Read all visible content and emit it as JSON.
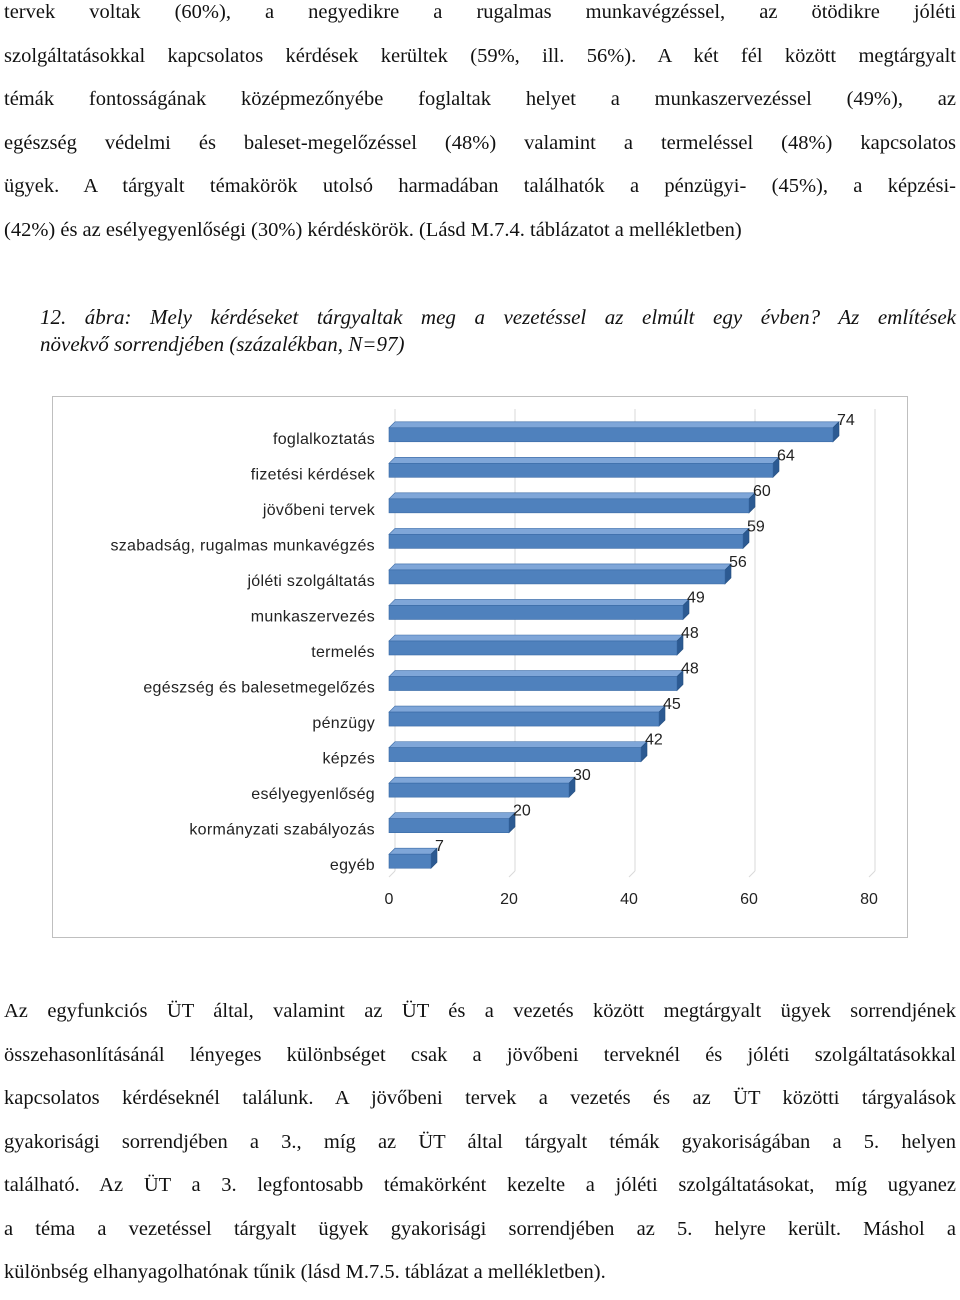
{
  "paragraph1": [
    "tervek voltak (60%), a negyedikre a rugalmas munkavégzéssel, az ötödikre jóléti",
    "szolgáltatásokkal kapcsolatos kérdések kerültek (59%, ill. 56%). A két fél között megtárgyalt",
    "témák fontosságának középmezőnyébe foglaltak helyet a munkaszervezéssel (49%), az",
    "egészség védelmi és baleset-megelőzéssel (48%) valamint a termeléssel (48%) kapcsolatos",
    "ügyek. A tárgyalt témakörök utolsó harmadában találhatók a pénzügyi- (45%), a képzési-",
    "(42%) és az esélyegyenlőségi (30%) kérdéskörök. (Lásd M.7.4. táblázatot a mellékletben)"
  ],
  "caption": [
    "12. ábra: Mely kérdéseket tárgyaltak meg a vezetéssel az elmúlt egy évben? Az említések",
    "növekvő sorrendjében (százalékban, N=97)"
  ],
  "chart_data": {
    "type": "bar",
    "orientation": "horizontal",
    "style": "3d",
    "title": "",
    "categories": [
      "foglalkoztatás",
      "fizetési kérdések",
      "jövőbeni tervek",
      "szabadság, rugalmas munkavégzés",
      "jóléti szolgáltatás",
      "munkaszervezés",
      "termelés",
      "egészség és balesetmegelőzés",
      "pénzügy",
      "képzés",
      "esélyegyenlőség",
      "kormányzati szabályozás",
      "egyéb"
    ],
    "values": [
      74,
      64,
      60,
      59,
      56,
      49,
      48,
      48,
      45,
      42,
      30,
      20,
      7
    ],
    "xlim": [
      0,
      80
    ],
    "xticks": [
      "0",
      "20",
      "40",
      "60",
      "80"
    ],
    "xlabel": "",
    "ylabel": "",
    "colors": {
      "bar_front": "#4f81bd",
      "bar_top": "#7fa6d8",
      "bar_side": "#2c5a92",
      "gridline": "#d9d9d9"
    }
  },
  "paragraph2": [
    "Az egyfunkciós ÜT által, valamint az ÜT és a vezetés között megtárgyalt ügyek sorrendjének",
    "összehasonlításánál lényeges különbséget csak a jövőbeni terveknél és jóléti szolgáltatásokkal",
    "kapcsolatos kérdéseknél találunk. A jövőbeni tervek a vezetés és az ÜT közötti tárgyalások",
    "gyakorisági sorrendjében a 3., míg az ÜT által tárgyalt témák gyakoriságában a 5. helyen",
    "található. Az ÜT a 3. legfontosabb témakörként kezelte a jóléti szolgáltatásokat, míg ugyanez",
    "a téma a vezetéssel tárgyalt ügyek gyakorisági sorrendjében az 5. helyre került. Máshol a",
    "különbség elhanyagolhatónak tűnik (lásd M.7.5. táblázat a mellékletben)."
  ]
}
